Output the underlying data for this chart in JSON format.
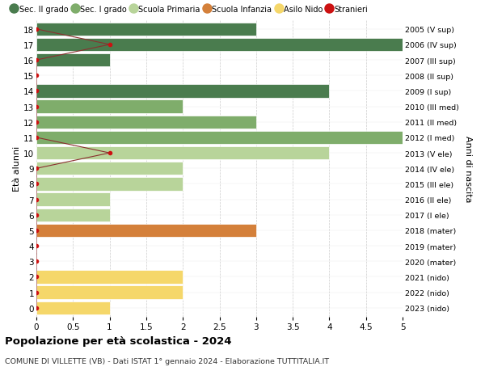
{
  "ages": [
    18,
    17,
    16,
    15,
    14,
    13,
    12,
    11,
    10,
    9,
    8,
    7,
    6,
    5,
    4,
    3,
    2,
    1,
    0
  ],
  "right_labels": [
    "2005 (V sup)",
    "2006 (IV sup)",
    "2007 (III sup)",
    "2008 (II sup)",
    "2009 (I sup)",
    "2010 (III med)",
    "2011 (II med)",
    "2012 (I med)",
    "2013 (V ele)",
    "2014 (IV ele)",
    "2015 (III ele)",
    "2016 (II ele)",
    "2017 (I ele)",
    "2018 (mater)",
    "2019 (mater)",
    "2020 (mater)",
    "2021 (nido)",
    "2022 (nido)",
    "2023 (nido)"
  ],
  "bar_values": [
    3,
    5,
    1,
    0,
    4,
    2,
    3,
    5,
    4,
    2,
    2,
    1,
    1,
    3,
    0,
    0,
    2,
    2,
    1
  ],
  "bar_colors": [
    "#4a7c4e",
    "#4a7c4e",
    "#4a7c4e",
    "#4a7c4e",
    "#4a7c4e",
    "#7fad6b",
    "#7fad6b",
    "#7fad6b",
    "#b8d49a",
    "#b8d49a",
    "#b8d49a",
    "#b8d49a",
    "#b8d49a",
    "#d4803a",
    "#d4803a",
    "#d4803a",
    "#f5d76a",
    "#f5d76a",
    "#f5d76a"
  ],
  "stranieri_x": [
    0,
    1,
    0,
    0,
    0,
    0,
    0,
    0,
    1,
    0,
    0,
    0,
    0,
    0,
    0,
    0,
    0,
    0,
    0
  ],
  "legend_labels": [
    "Sec. II grado",
    "Sec. I grado",
    "Scuola Primaria",
    "Scuola Infanzia",
    "Asilo Nido",
    "Stranieri"
  ],
  "legend_colors": [
    "#4a7c4e",
    "#7fad6b",
    "#b8d49a",
    "#d4803a",
    "#f5d76a",
    "#cc1111"
  ],
  "title": "Popolazione per età scolastica - 2024",
  "subtitle": "COMUNE DI VILLETTE (VB) - Dati ISTAT 1° gennaio 2024 - Elaborazione TUTTITALIA.IT",
  "ylabel_left": "Età alunni",
  "ylabel_right": "Anni di nascita",
  "xlim": [
    0,
    5.0
  ],
  "xticks": [
    0,
    0.5,
    1.0,
    1.5,
    2.0,
    2.5,
    3.0,
    3.5,
    4.0,
    4.5,
    5.0
  ],
  "bg_color": "#ffffff",
  "grid_color": "#cccccc",
  "bar_height": 0.85
}
